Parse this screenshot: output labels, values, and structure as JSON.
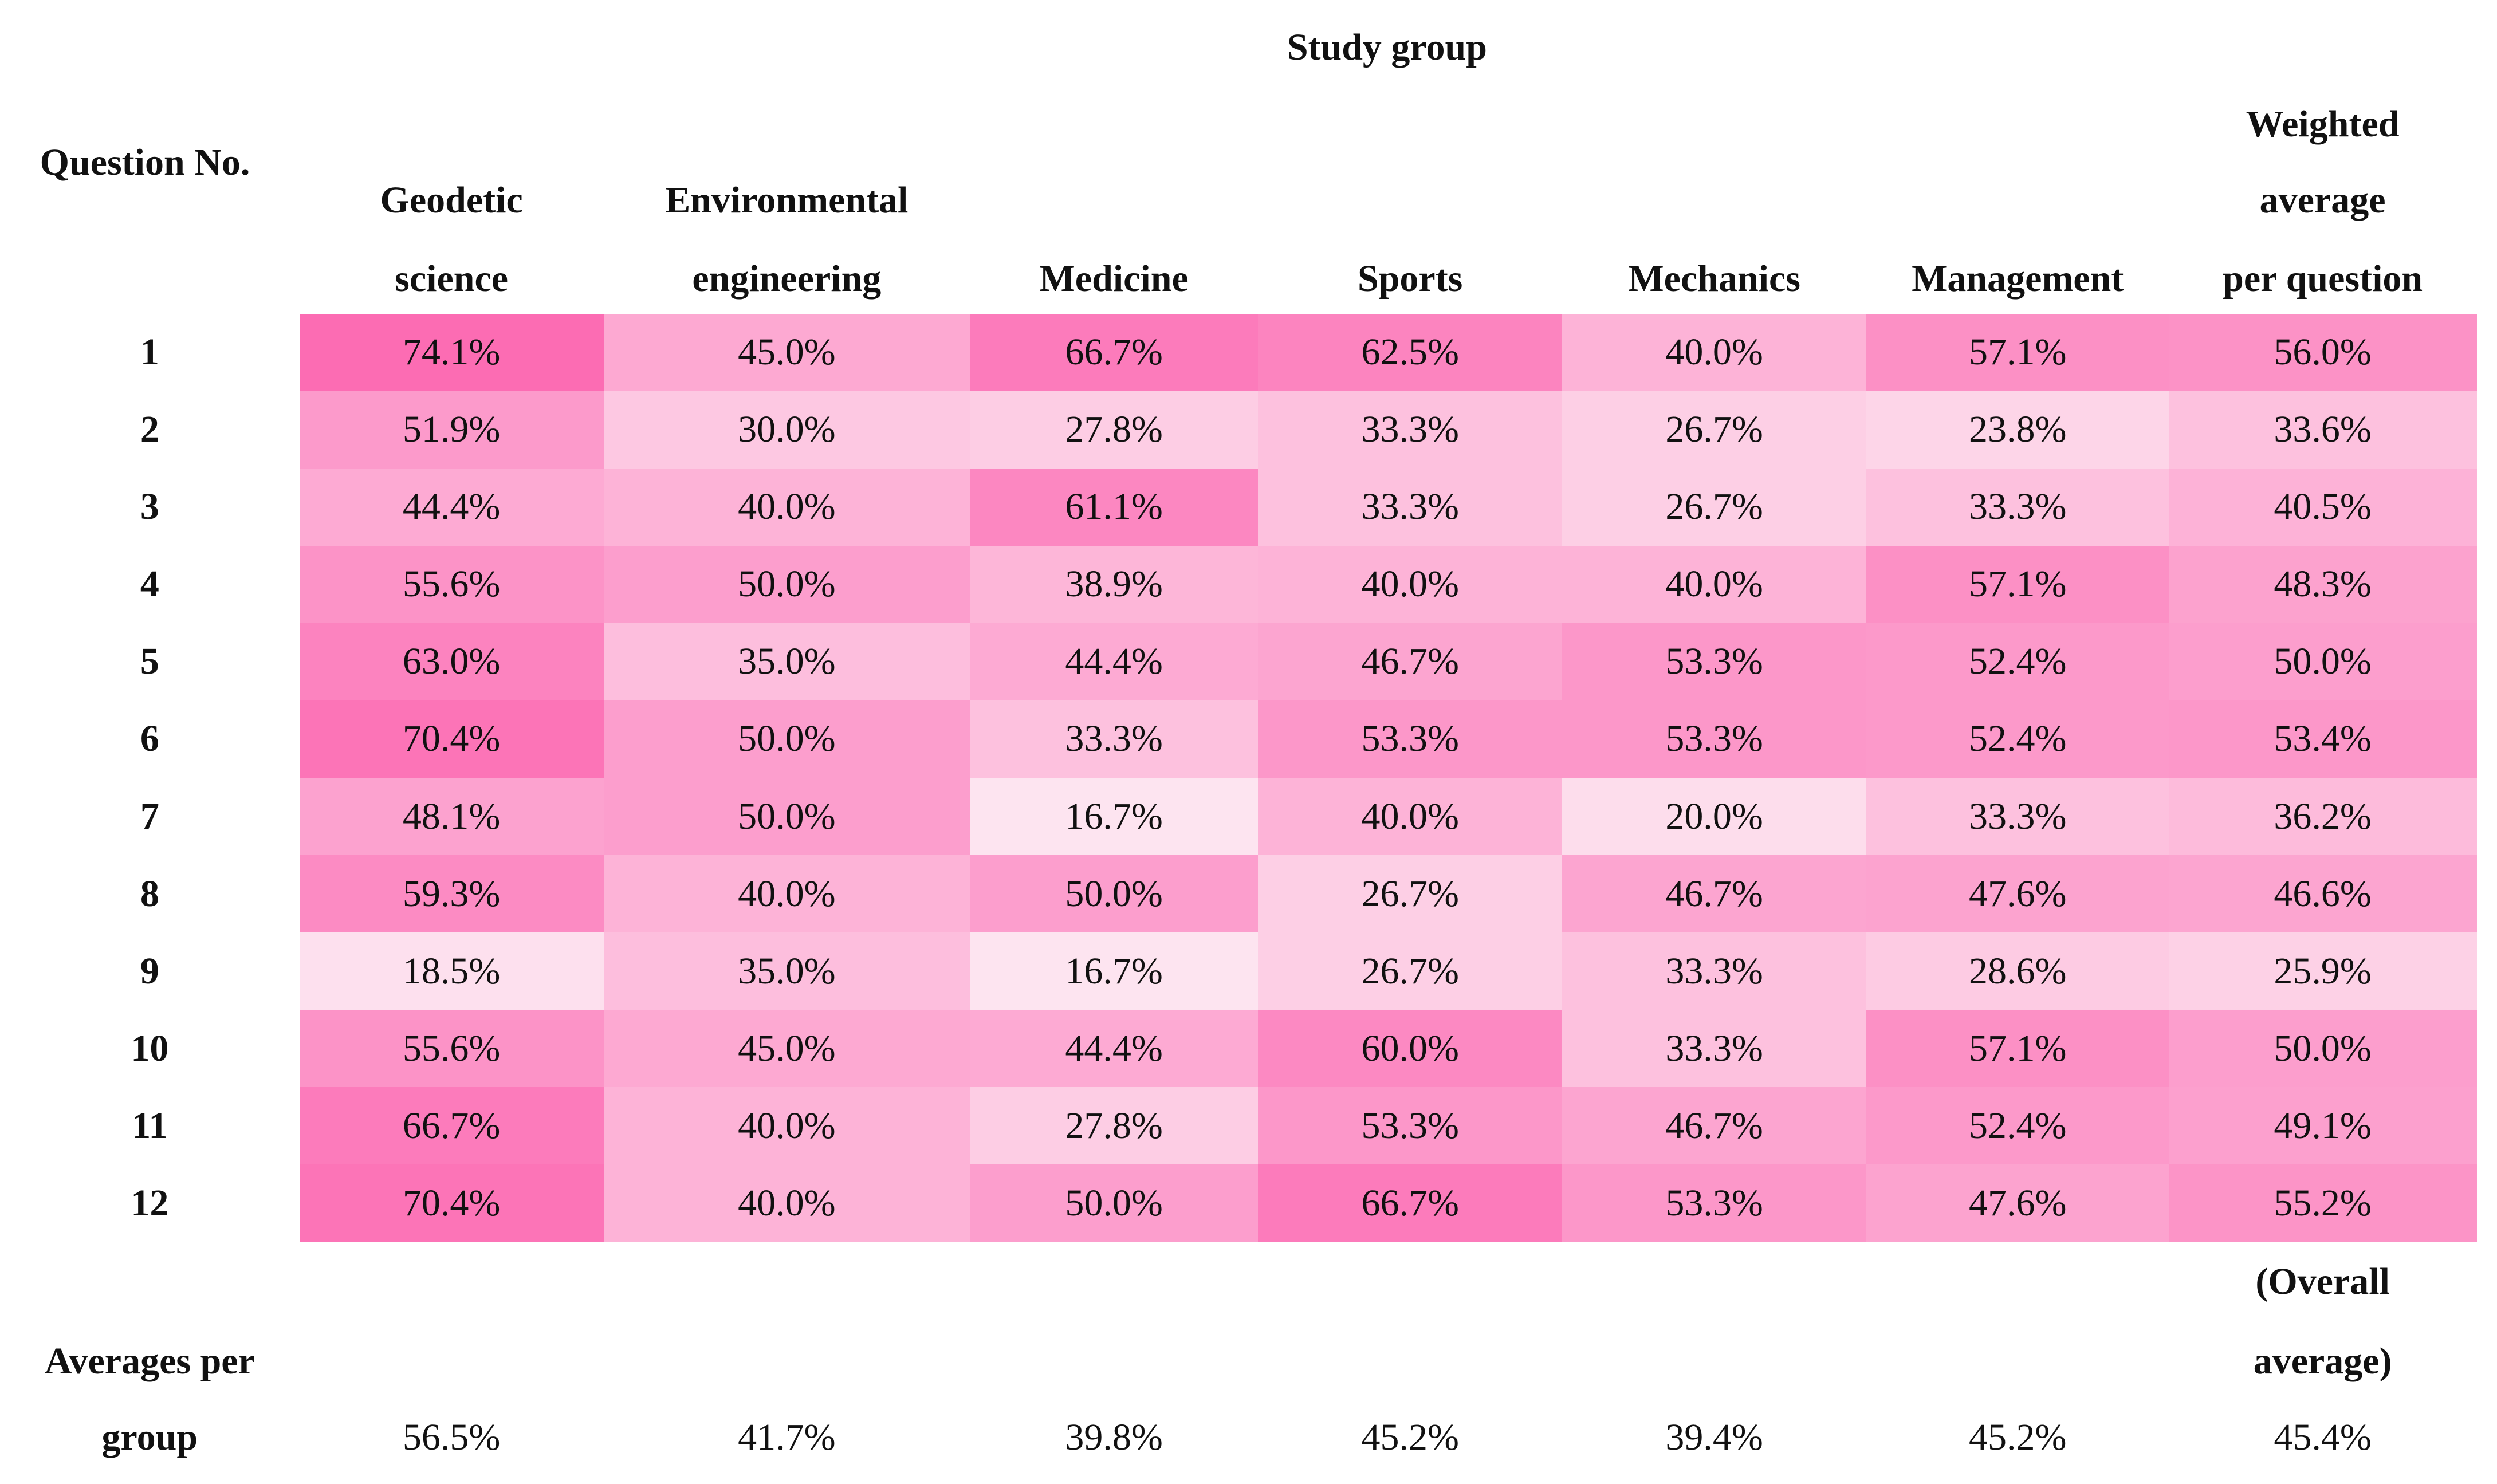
{
  "header": {
    "title": "Study group",
    "row_label": "Question No.",
    "columns": [
      [
        "Geodetic",
        "science"
      ],
      [
        "Environmental",
        "engineering"
      ],
      [
        "Medicine"
      ],
      [
        "Sports"
      ],
      [
        "Mechanics"
      ],
      [
        "Management"
      ],
      [
        "Weighted",
        "average",
        "per question"
      ]
    ]
  },
  "table": {
    "color_low": "#fde4f0",
    "color_high": "#fc6cb3",
    "rows": [
      {
        "label": "1",
        "cells": [
          "74.1%",
          "45.0%",
          "66.7%",
          "62.5%",
          "40.0%",
          "57.1%",
          "56.0%"
        ]
      },
      {
        "label": "2",
        "cells": [
          "51.9%",
          "30.0%",
          "27.8%",
          "33.3%",
          "26.7%",
          "23.8%",
          "33.6%"
        ]
      },
      {
        "label": "3",
        "cells": [
          "44.4%",
          "40.0%",
          "61.1%",
          "33.3%",
          "26.7%",
          "33.3%",
          "40.5%"
        ]
      },
      {
        "label": "4",
        "cells": [
          "55.6%",
          "50.0%",
          "38.9%",
          "40.0%",
          "40.0%",
          "57.1%",
          "48.3%"
        ]
      },
      {
        "label": "5",
        "cells": [
          "63.0%",
          "35.0%",
          "44.4%",
          "46.7%",
          "53.3%",
          "52.4%",
          "50.0%"
        ]
      },
      {
        "label": "6",
        "cells": [
          "70.4%",
          "50.0%",
          "33.3%",
          "53.3%",
          "53.3%",
          "52.4%",
          "53.4%"
        ]
      },
      {
        "label": "7",
        "cells": [
          "48.1%",
          "50.0%",
          "16.7%",
          "40.0%",
          "20.0%",
          "33.3%",
          "36.2%"
        ]
      },
      {
        "label": "8",
        "cells": [
          "59.3%",
          "40.0%",
          "50.0%",
          "26.7%",
          "46.7%",
          "47.6%",
          "46.6%"
        ]
      },
      {
        "label": "9",
        "cells": [
          "18.5%",
          "35.0%",
          "16.7%",
          "26.7%",
          "33.3%",
          "28.6%",
          "25.9%"
        ]
      },
      {
        "label": "10",
        "cells": [
          "55.6%",
          "45.0%",
          "44.4%",
          "60.0%",
          "33.3%",
          "57.1%",
          "50.0%"
        ]
      },
      {
        "label": "11",
        "cells": [
          "66.7%",
          "40.0%",
          "27.8%",
          "53.3%",
          "46.7%",
          "52.4%",
          "49.1%"
        ]
      },
      {
        "label": "12",
        "cells": [
          "70.4%",
          "40.0%",
          "50.0%",
          "66.7%",
          "53.3%",
          "47.6%",
          "55.2%"
        ]
      }
    ]
  },
  "footer": {
    "label": [
      "Averages per",
      "group"
    ],
    "note": [
      "(Overall",
      "average)"
    ],
    "values": [
      "56.5%",
      "41.7%",
      "39.8%",
      "45.2%",
      "39.4%",
      "45.2%",
      "45.4%"
    ]
  }
}
